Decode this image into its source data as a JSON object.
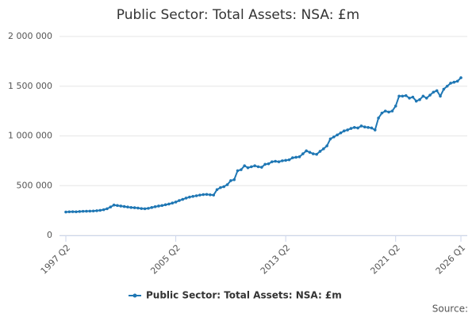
{
  "chart_data": {
    "type": "line",
    "title": "Public Sector: Total Assets: NSA: £m",
    "source": "Source:",
    "categories": [
      "1997 Q2",
      null,
      null,
      null,
      null,
      null,
      null,
      null,
      null,
      null,
      null,
      null,
      null,
      null,
      null,
      null,
      null,
      null,
      null,
      null,
      null,
      null,
      null,
      null,
      null,
      null,
      null,
      null,
      null,
      null,
      null,
      null,
      "2005 Q2",
      null,
      null,
      null,
      null,
      null,
      null,
      null,
      null,
      null,
      null,
      null,
      null,
      null,
      null,
      null,
      null,
      null,
      null,
      null,
      null,
      null,
      null,
      null,
      null,
      null,
      null,
      null,
      null,
      null,
      null,
      null,
      "2013 Q2",
      null,
      null,
      null,
      null,
      null,
      null,
      null,
      null,
      null,
      null,
      null,
      null,
      null,
      null,
      null,
      null,
      null,
      null,
      null,
      null,
      null,
      null,
      null,
      null,
      null,
      null,
      null,
      null,
      null,
      null,
      null,
      "2021 Q2",
      null,
      null,
      null,
      null,
      null,
      null,
      null,
      null,
      null,
      null,
      null,
      null,
      null,
      null,
      null,
      null,
      null,
      null,
      "2026 Q1"
    ],
    "series": [
      {
        "name": "Public Sector: Total Assets: NSA: £m",
        "color": "#1f77b4",
        "values": [
          235000,
          237000,
          238000,
          237000,
          240000,
          242000,
          243000,
          244000,
          245000,
          248000,
          252000,
          258000,
          268000,
          285000,
          305000,
          300000,
          295000,
          290000,
          285000,
          280000,
          278000,
          275000,
          270000,
          268000,
          272000,
          280000,
          288000,
          295000,
          300000,
          308000,
          315000,
          325000,
          335000,
          350000,
          362000,
          375000,
          385000,
          392000,
          398000,
          405000,
          410000,
          412000,
          408000,
          405000,
          460000,
          480000,
          490000,
          510000,
          550000,
          560000,
          650000,
          660000,
          700000,
          680000,
          690000,
          700000,
          690000,
          685000,
          715000,
          720000,
          740000,
          745000,
          740000,
          750000,
          755000,
          760000,
          780000,
          785000,
          790000,
          820000,
          850000,
          835000,
          820000,
          815000,
          845000,
          870000,
          900000,
          970000,
          990000,
          1010000,
          1030000,
          1050000,
          1060000,
          1075000,
          1085000,
          1080000,
          1100000,
          1090000,
          1085000,
          1080000,
          1060000,
          1180000,
          1230000,
          1250000,
          1240000,
          1250000,
          1300000,
          1400000,
          1400000,
          1405000,
          1380000,
          1390000,
          1350000,
          1365000,
          1400000,
          1380000,
          1410000,
          1440000,
          1455000,
          1400000,
          1470000,
          1500000,
          1530000,
          1540000,
          1550000,
          1585000
        ]
      }
    ],
    "ylim": [
      0,
      2000000
    ],
    "yticks": [
      0,
      {
        "value": 500000,
        "label": "500 000"
      },
      {
        "value": 1000000,
        "label": "1 000 000"
      },
      {
        "value": 1500000,
        "label": "1 500 000"
      },
      {
        "value": 2000000,
        "label": "2 000 000"
      }
    ],
    "grid": true
  }
}
